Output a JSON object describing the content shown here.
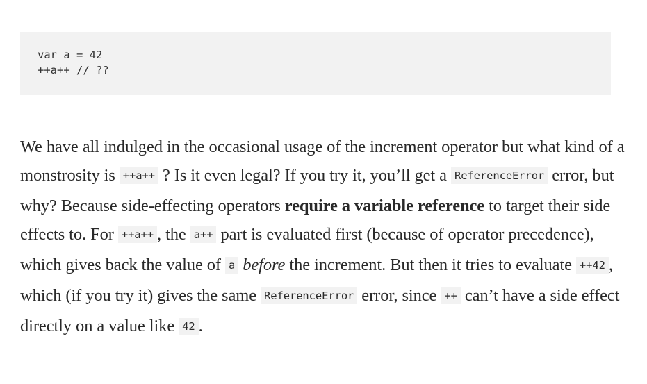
{
  "code_block": {
    "lines": [
      "var a = 42",
      "++a++ // ??"
    ]
  },
  "paragraph": {
    "t1": "We have all indulged in the occasional usage of the increment operator but what kind of a monstrosity is ",
    "c1": "++a++",
    "t2": " ? Is it even legal? If you try it, you’ll get a ",
    "c2": "ReferenceError",
    "t3": " error, but why? Because side-effecting operators ",
    "b1": "require a variable reference",
    "t4": " to target their side effects to. For ",
    "c3": "++a++",
    "t5": ", the ",
    "c4": "a++",
    "t6": " part is evaluated first (because of operator precedence), which gives back the value of ",
    "c5": "a",
    "t7": " ",
    "i1": "before",
    "t8": " the increment. But then it tries to evaluate ",
    "c6": "++42",
    "t9": ", which (if you try it) gives the same ",
    "c7": "ReferenceError",
    "t10": " error, since ",
    "c8": "++",
    "t11": " can’t have a side effect directly on a value like ",
    "c9": "42",
    "t12": "."
  }
}
